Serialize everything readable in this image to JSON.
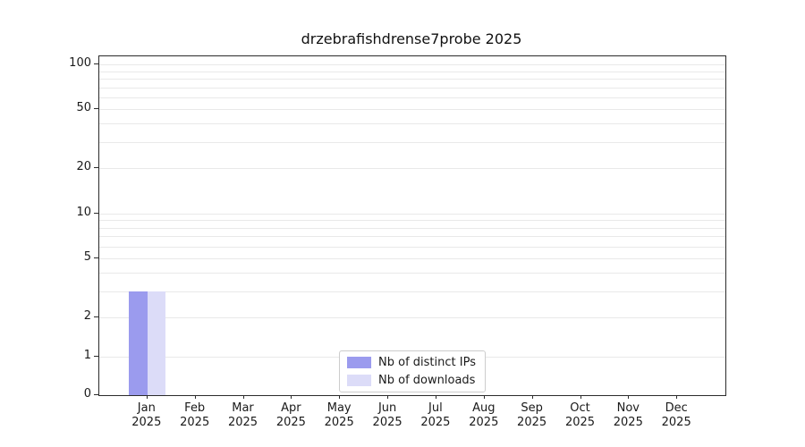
{
  "title": "drzebrafishdrense7probe 2025",
  "chart_data": {
    "type": "bar",
    "title": "drzebrafishdrense7probe 2025",
    "categories": [
      "Jan",
      "Feb",
      "Mar",
      "Apr",
      "May",
      "Jun",
      "Jul",
      "Aug",
      "Sep",
      "Oct",
      "Nov",
      "Dec"
    ],
    "year": "2025",
    "series": [
      {
        "name": "Nb of distinct IPs",
        "color": "#9b9bee",
        "values": [
          3,
          0,
          0,
          0,
          0,
          0,
          0,
          0,
          0,
          0,
          0,
          0
        ]
      },
      {
        "name": "Nb of downloads",
        "color": "#dcdcf8",
        "values": [
          3,
          0,
          0,
          0,
          0,
          0,
          0,
          0,
          0,
          0,
          0,
          0
        ]
      }
    ],
    "yscale": "symlog",
    "yticks": [
      0,
      1,
      2,
      5,
      10,
      20,
      50,
      100
    ],
    "ylim": [
      0,
      100
    ],
    "grid": "horizontal",
    "legend_position": "bottom-center"
  }
}
